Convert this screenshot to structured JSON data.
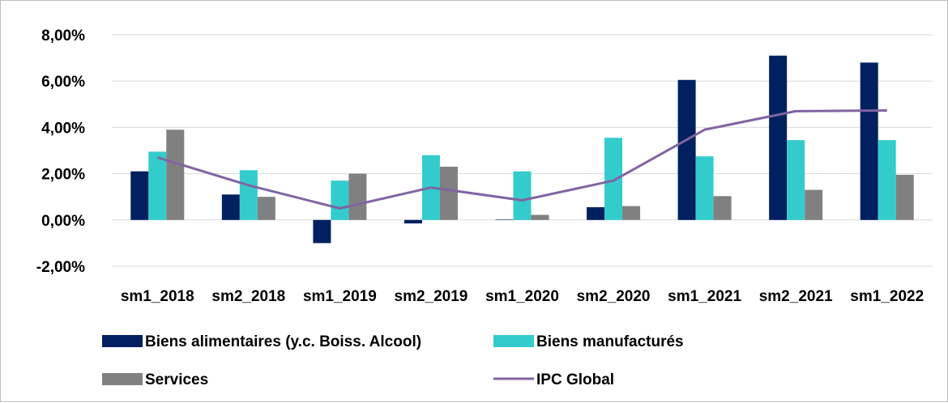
{
  "chart_data": {
    "type": "bar",
    "categories": [
      "sm1_2018",
      "sm2_2018",
      "sm1_2019",
      "sm2_2019",
      "sm1_2020",
      "sm2_2020",
      "sm1_2021",
      "sm2_2021",
      "sm1_2022"
    ],
    "series": [
      {
        "name": "Biens alimentaires (y.c. Boiss. Alcool)",
        "kind": "bar",
        "color": "#002060",
        "values": [
          2.1,
          1.1,
          -1.0,
          -0.15,
          0.02,
          0.55,
          6.05,
          7.1,
          6.8
        ]
      },
      {
        "name": "Biens manufacturés",
        "kind": "bar",
        "color": "#33CCCC",
        "values": [
          2.95,
          2.15,
          1.7,
          2.8,
          2.1,
          3.55,
          2.75,
          3.45,
          3.45
        ]
      },
      {
        "name": "Services",
        "kind": "bar",
        "color": "#808080",
        "values": [
          3.9,
          1.0,
          2.0,
          2.3,
          0.22,
          0.6,
          1.03,
          1.3,
          1.95
        ]
      },
      {
        "name": "IPC Global",
        "kind": "line",
        "color": "#8064A2",
        "values": [
          2.7,
          1.5,
          0.5,
          1.4,
          0.85,
          1.7,
          3.9,
          4.7,
          4.73
        ]
      }
    ],
    "ylim": [
      -2,
      8
    ],
    "yticks": [
      -2,
      0,
      2,
      4,
      6,
      8
    ],
    "ytick_labels": [
      "-2,00%",
      "0,00%",
      "2,00%",
      "4,00%",
      "6,00%",
      "8,00%"
    ],
    "grid": true,
    "legend_position": "bottom"
  }
}
